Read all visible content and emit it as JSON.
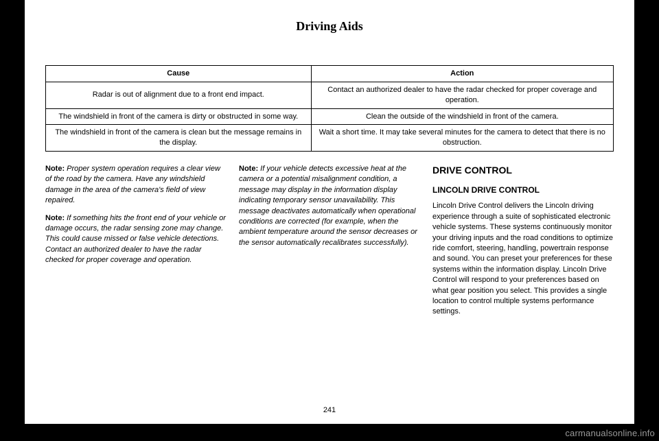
{
  "section_title": "Driving Aids",
  "table": {
    "headers": [
      "Cause",
      "Action"
    ],
    "rows": [
      [
        "Radar is out of alignment due to a front end impact.",
        "Contact an authorized dealer to have the radar checked for proper coverage and operation."
      ],
      [
        "The windshield in front of the camera is dirty or obstructed in some way.",
        "Clean the outside of the windshield in front of the camera."
      ],
      [
        "The windshield in front of the camera is clean but the message remains in the display.",
        "Wait a short time. It may take several minutes for the camera to detect that there is no obstruction."
      ]
    ]
  },
  "col1": {
    "note1_label": "Note:",
    "note1_body": " Proper system operation requires a clear view of the road by the camera. Have any windshield damage in the area of the camera's field of view repaired.",
    "note2_label": "Note:",
    "note2_body": " If something hits the front end of your vehicle or damage occurs, the radar sensing zone may change. This could cause missed or false vehicle detections. Contact an authorized dealer to have the radar checked for proper coverage and operation."
  },
  "col2": {
    "note1_label": "Note:",
    "note1_body": " If your vehicle detects excessive heat at the camera or a potential misalignment condition, a message may display in the information display indicating temporary sensor unavailability. This message deactivates automatically when operational conditions are corrected (for example, when the ambient temperature around the sensor decreases or the sensor automatically recalibrates successfully)."
  },
  "col3": {
    "h1": "DRIVE CONTROL",
    "h2": "LINCOLN DRIVE CONTROL",
    "body": "Lincoln Drive Control delivers the Lincoln driving experience through a suite of sophisticated electronic vehicle systems. These systems continuously monitor your driving inputs and the road conditions to optimize ride comfort, steering, handling, powertrain response and sound. You can preset your preferences for these systems within the information display. Lincoln Drive Control will respond to your preferences based on what gear position you select. This provides a single location to control multiple systems performance settings."
  },
  "page_number": "241",
  "watermark": "carmanualsonline.info"
}
